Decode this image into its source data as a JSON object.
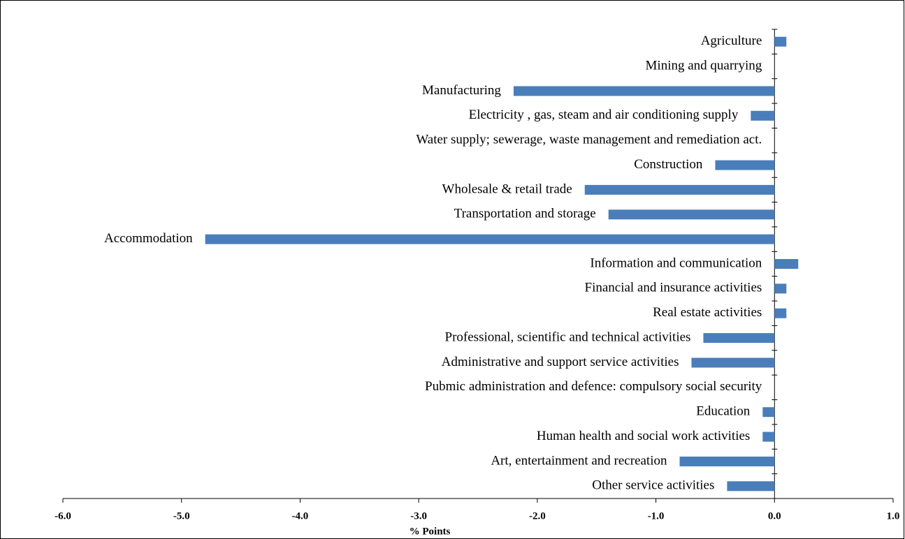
{
  "chart_data": {
    "type": "bar",
    "orientation": "horizontal",
    "x_label": "% Points",
    "categories": [
      "Agriculture",
      "Mining and quarrying",
      "Manufacturing",
      "Electricity , gas, steam and air conditioning supply",
      "Water supply; sewerage, waste management and remediation act.",
      "Construction",
      "Wholesale & retail trade",
      "Transportation and storage",
      "Accommodation",
      "Information and communication",
      "Financial and insurance activities",
      "Real estate activities",
      "Professional, scientific and technical activities",
      "Administrative and support service activities",
      "Pubmic administration  and defence: compulsory social security",
      "Education",
      "Human health and social work activities",
      "Art, entertainment and recreation",
      "Other service activities"
    ],
    "values": [
      0.1,
      0,
      -2.2,
      -0.2,
      0,
      -0.5,
      -1.6,
      -1.4,
      -4.8,
      0.2,
      0.1,
      0.1,
      -0.6,
      -0.7,
      0,
      -0.1,
      -0.1,
      -0.8,
      -0.4
    ],
    "color": "#4a7ebb",
    "xlim": [
      -6,
      1
    ],
    "xticks": [
      {
        "value": -6,
        "label": "-6.0"
      },
      {
        "value": -5,
        "label": "-5.0"
      },
      {
        "value": -4,
        "label": "-4.0"
      },
      {
        "value": -3,
        "label": "-3.0"
      },
      {
        "value": -2,
        "label": "-2.0"
      },
      {
        "value": -1,
        "label": "-1.0"
      },
      {
        "value": 0,
        "label": "0.0"
      },
      {
        "value": 1,
        "label": "1.0"
      }
    ],
    "grid": false
  }
}
